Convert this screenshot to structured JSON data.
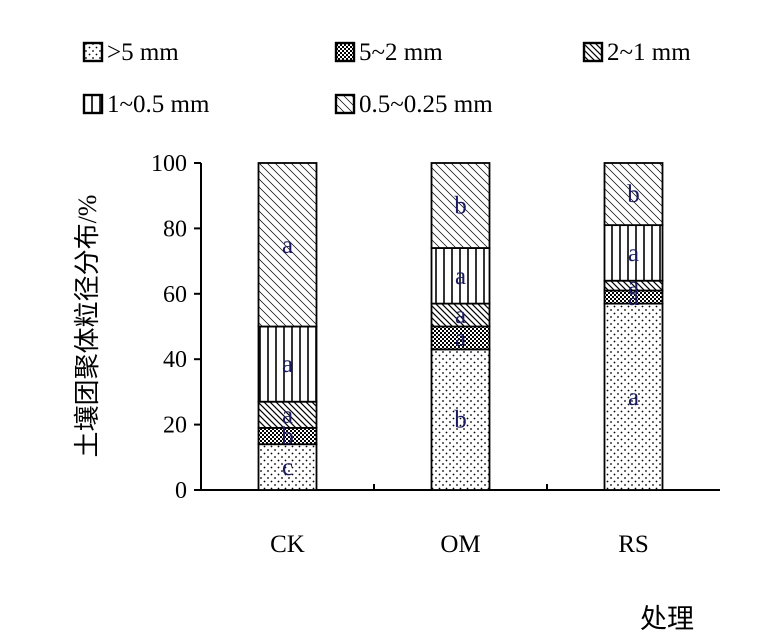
{
  "chart_data": {
    "type": "bar",
    "stacked": true,
    "categories": [
      "CK",
      "OM",
      "RS"
    ],
    "ylabel": "土壤团聚体粒径分布/%",
    "xlabel": "处理",
    "ylim": [
      0,
      100
    ],
    "yticks": [
      "0",
      "20",
      "40",
      "60",
      "80",
      "100"
    ],
    "legend_position": "top",
    "series": [
      {
        "name": ">5 mm",
        "values": [
          14,
          43,
          57
        ],
        "letters": [
          "c",
          "b",
          "a"
        ],
        "pattern": "dots"
      },
      {
        "name": "5~2 mm",
        "values": [
          5,
          7,
          4
        ],
        "letters": [
          "b",
          "a",
          "a"
        ],
        "pattern": "grid"
      },
      {
        "name": "2~1 mm",
        "values": [
          8,
          7,
          3
        ],
        "letters": [
          "a",
          "a",
          "a"
        ],
        "pattern": "diag"
      },
      {
        "name": "1~0.5 mm",
        "values": [
          23,
          17,
          17
        ],
        "letters": [
          "a",
          "a",
          "a"
        ],
        "pattern": "vert"
      },
      {
        "name": "0.5~0.25 mm",
        "values": [
          50,
          26,
          19
        ],
        "letters": [
          "a",
          "b",
          "b"
        ],
        "pattern": "light-diag"
      }
    ]
  }
}
